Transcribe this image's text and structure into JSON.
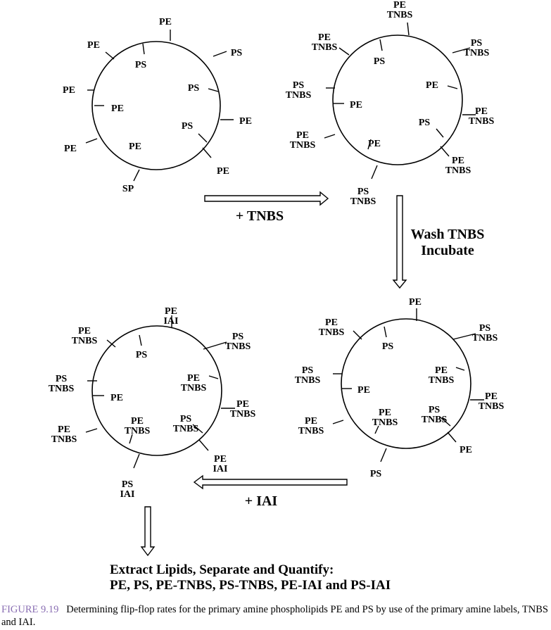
{
  "panels": {
    "p1": {
      "labels": [
        {
          "lines": [
            "PE"
          ]
        },
        {
          "lines": [
            "PE"
          ]
        },
        {
          "lines": [
            "PS"
          ]
        },
        {
          "lines": [
            "PS"
          ]
        },
        {
          "lines": [
            "PE"
          ]
        },
        {
          "lines": [
            "PS"
          ]
        },
        {
          "lines": [
            "PE"
          ]
        },
        {
          "lines": [
            "PE"
          ]
        },
        {
          "lines": [
            "PS"
          ]
        },
        {
          "lines": [
            "PE"
          ]
        },
        {
          "lines": [
            "PE"
          ]
        },
        {
          "lines": [
            "SP"
          ]
        }
      ]
    },
    "p2": {
      "labels": [
        {
          "lines": [
            "PE",
            "TNBS"
          ]
        },
        {
          "lines": [
            "PE",
            "TNBS"
          ]
        },
        {
          "lines": [
            "PS"
          ]
        },
        {
          "lines": [
            "PS",
            "TNBS"
          ]
        },
        {
          "lines": [
            "PS",
            "TNBS"
          ]
        },
        {
          "lines": [
            "PE"
          ]
        },
        {
          "lines": [
            "PE"
          ]
        },
        {
          "lines": [
            "PE",
            "TNBS"
          ]
        },
        {
          "lines": [
            "PS"
          ]
        },
        {
          "lines": [
            "PE",
            "TNBS"
          ]
        },
        {
          "lines": [
            "PE"
          ]
        },
        {
          "lines": [
            "PE",
            "TNBS"
          ]
        },
        {
          "lines": [
            "PS",
            "TNBS"
          ]
        }
      ]
    },
    "p3": {
      "labels": [
        {
          "lines": [
            "PE"
          ]
        },
        {
          "lines": [
            "PE",
            "TNBS"
          ]
        },
        {
          "lines": [
            "PS"
          ]
        },
        {
          "lines": [
            "PS",
            "TNBS"
          ]
        },
        {
          "lines": [
            "PS",
            "TNBS"
          ]
        },
        {
          "lines": [
            "PE"
          ]
        },
        {
          "lines": [
            "PE",
            "TNBS"
          ]
        },
        {
          "lines": [
            "PE",
            "TNBS"
          ]
        },
        {
          "lines": [
            "PE",
            "TNBS"
          ]
        },
        {
          "lines": [
            "PE",
            "TNBS"
          ]
        },
        {
          "lines": [
            "PS",
            "TNBS"
          ]
        },
        {
          "lines": [
            "PE"
          ]
        },
        {
          "lines": [
            "PS"
          ]
        }
      ]
    },
    "p4": {
      "labels": [
        {
          "lines": [
            "PE",
            "IAI"
          ]
        },
        {
          "lines": [
            "PE",
            "TNBS"
          ]
        },
        {
          "lines": [
            "PS"
          ]
        },
        {
          "lines": [
            "PS",
            "TNBS"
          ]
        },
        {
          "lines": [
            "PS",
            "TNBS"
          ]
        },
        {
          "lines": [
            "PE"
          ]
        },
        {
          "lines": [
            "PE",
            "TNBS"
          ]
        },
        {
          "lines": [
            "PE",
            "TNBS"
          ]
        },
        {
          "lines": [
            "PE",
            "TNBS"
          ]
        },
        {
          "lines": [
            "PE",
            "TNBS"
          ]
        },
        {
          "lines": [
            "PS",
            "TNBS"
          ]
        },
        {
          "lines": [
            "PE",
            "IAI"
          ]
        },
        {
          "lines": [
            "PS",
            "IAI"
          ]
        }
      ]
    }
  },
  "steps": {
    "add_tnbs": "+ TNBS",
    "wash_line1": "Wash TNBS",
    "wash_line2": "Incubate",
    "add_iai": "+ IAI"
  },
  "final_step": {
    "line1": "Extract Lipids, Separate and Quantify:",
    "line2": "PE, PS, PE-TNBS, PS-TNBS, PE-IAI and PS-IAI"
  },
  "caption": {
    "figure": "FIGURE 9.19",
    "text": "Determining flip-flop rates for the primary amine phospholipids PE and PS by use of the primary amine labels, TNBS and IAI."
  }
}
